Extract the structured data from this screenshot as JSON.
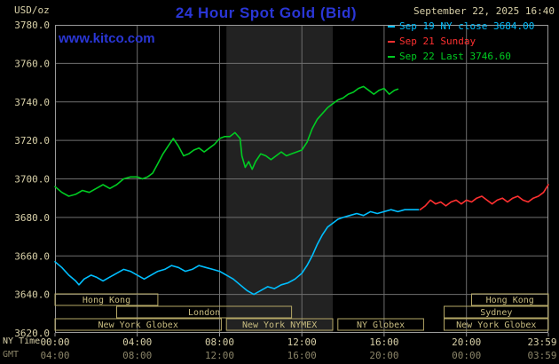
{
  "header": {
    "unit_label": "USD/oz",
    "title": "24 Hour Spot Gold (Bid)",
    "datetime": "September 22, 2025 16:40",
    "watermark": "www.kitco.com"
  },
  "legend": [
    {
      "label": "Sep 19 NY close 3684.00",
      "color": "#00bfff"
    },
    {
      "label": "Sep 21 Sunday",
      "color": "#ff3030"
    },
    {
      "label": "Sep 22 Last 3746.60",
      "color": "#00cc22"
    }
  ],
  "colors": {
    "background": "#000000",
    "band": "#222222",
    "grid": "#6f6f6f",
    "border": "#9a9a9a",
    "axis_text": "#d8d0a8",
    "gmt_text": "#8a8468",
    "session": "#b4a766",
    "session_text": "#c8bc80",
    "title_blue": "#2a36d6",
    "date_text": "#d8d0a8"
  },
  "axes": {
    "y": {
      "ticks": [
        3780,
        3760,
        3740,
        3720,
        3700,
        3680,
        3660,
        3640,
        3620
      ]
    },
    "x_ny": {
      "row_label": "NY Time",
      "ticks": [
        {
          "t": "00:00",
          "label": "00:00"
        },
        {
          "t": "04:00",
          "label": "04:00"
        },
        {
          "t": "08:00",
          "label": "08:00"
        },
        {
          "t": "12:00",
          "label": "12:00"
        },
        {
          "t": "16:00",
          "label": "16:00"
        },
        {
          "t": "20:00",
          "label": "20:00"
        },
        {
          "t": "23:59",
          "label": "23:59"
        }
      ]
    },
    "x_gmt": {
      "row_label": "GMT",
      "labels": [
        "04:00",
        "08:00",
        "12:00",
        "16:00",
        "20:00",
        "00:00",
        "03:59"
      ]
    }
  },
  "sessions": [
    {
      "label": "Hong Kong",
      "row": 0,
      "from": "00:00",
      "to": "05:00"
    },
    {
      "label": "Hong Kong",
      "row": 0,
      "from": "20:15",
      "to": "23:59"
    },
    {
      "label": "London",
      "row": 1,
      "from": "03:00",
      "to": "11:30"
    },
    {
      "label": "Sydney",
      "row": 1,
      "from": "18:55",
      "to": "23:59"
    },
    {
      "label": "New York Globex",
      "row": 2,
      "from": "00:00",
      "to": "08:05"
    },
    {
      "label": "New York NYMEX",
      "row": 2,
      "from": "08:20",
      "to": "13:30"
    },
    {
      "label": "NY Globex",
      "row": 2,
      "from": "13:45",
      "to": "17:55"
    },
    {
      "label": "New York Globex",
      "row": 2,
      "from": "18:55",
      "to": "23:59"
    }
  ],
  "chart_data": {
    "type": "line",
    "title": "24 Hour Spot Gold (Bid)",
    "ylabel": "USD/oz",
    "xlabel": "NY Time / GMT",
    "ylim": [
      3620,
      3780
    ],
    "grid": true,
    "legend_position": "top-right",
    "ny_close": 3684.0,
    "last": 3746.6,
    "shaded_region": {
      "from": "08:20",
      "to": "13:30"
    },
    "series": [
      {
        "id": "sep19",
        "name": "Sep 19 NY close 3684.00",
        "color": "#00bfff",
        "points": [
          [
            "00:00",
            3657
          ],
          [
            "00:20",
            3654
          ],
          [
            "00:40",
            3650
          ],
          [
            "01:00",
            3647
          ],
          [
            "01:10",
            3645
          ],
          [
            "01:25",
            3648
          ],
          [
            "01:45",
            3650
          ],
          [
            "02:00",
            3649
          ],
          [
            "02:20",
            3647
          ],
          [
            "02:40",
            3649
          ],
          [
            "03:00",
            3651
          ],
          [
            "03:20",
            3653
          ],
          [
            "03:40",
            3652
          ],
          [
            "04:00",
            3650
          ],
          [
            "04:20",
            3648
          ],
          [
            "04:40",
            3650
          ],
          [
            "05:00",
            3652
          ],
          [
            "05:20",
            3653
          ],
          [
            "05:40",
            3655
          ],
          [
            "06:00",
            3654
          ],
          [
            "06:20",
            3652
          ],
          [
            "06:40",
            3653
          ],
          [
            "07:00",
            3655
          ],
          [
            "07:20",
            3654
          ],
          [
            "07:40",
            3653
          ],
          [
            "08:00",
            3652
          ],
          [
            "08:20",
            3650
          ],
          [
            "08:40",
            3648
          ],
          [
            "09:00",
            3645
          ],
          [
            "09:20",
            3642
          ],
          [
            "09:40",
            3640
          ],
          [
            "10:00",
            3642
          ],
          [
            "10:20",
            3644
          ],
          [
            "10:40",
            3643
          ],
          [
            "11:00",
            3645
          ],
          [
            "11:20",
            3646
          ],
          [
            "11:40",
            3648
          ],
          [
            "12:00",
            3651
          ],
          [
            "12:15",
            3655
          ],
          [
            "12:30",
            3660
          ],
          [
            "12:45",
            3666
          ],
          [
            "13:00",
            3671
          ],
          [
            "13:15",
            3675
          ],
          [
            "13:30",
            3677
          ],
          [
            "13:45",
            3679
          ],
          [
            "14:00",
            3680
          ],
          [
            "14:20",
            3681
          ],
          [
            "14:40",
            3682
          ],
          [
            "15:00",
            3681
          ],
          [
            "15:20",
            3683
          ],
          [
            "15:40",
            3682
          ],
          [
            "16:00",
            3683
          ],
          [
            "16:20",
            3684
          ],
          [
            "16:40",
            3683
          ],
          [
            "17:00",
            3684
          ],
          [
            "17:20",
            3684
          ],
          [
            "17:40",
            3684
          ]
        ]
      },
      {
        "id": "sep21",
        "name": "Sep 21 Sunday",
        "color": "#ff3030",
        "points": [
          [
            "17:45",
            3684
          ],
          [
            "18:00",
            3686
          ],
          [
            "18:15",
            3689
          ],
          [
            "18:30",
            3687
          ],
          [
            "18:45",
            3688
          ],
          [
            "19:00",
            3686
          ],
          [
            "19:15",
            3688
          ],
          [
            "19:30",
            3689
          ],
          [
            "19:45",
            3687
          ],
          [
            "20:00",
            3689
          ],
          [
            "20:15",
            3688
          ],
          [
            "20:30",
            3690
          ],
          [
            "20:45",
            3691
          ],
          [
            "21:00",
            3689
          ],
          [
            "21:15",
            3687
          ],
          [
            "21:30",
            3689
          ],
          [
            "21:45",
            3690
          ],
          [
            "22:00",
            3688
          ],
          [
            "22:15",
            3690
          ],
          [
            "22:30",
            3691
          ],
          [
            "22:45",
            3689
          ],
          [
            "23:00",
            3688
          ],
          [
            "23:15",
            3690
          ],
          [
            "23:30",
            3691
          ],
          [
            "23:45",
            3693
          ],
          [
            "23:59",
            3697
          ]
        ]
      },
      {
        "id": "sep22",
        "name": "Sep 22 Last 3746.60",
        "color": "#00cc22",
        "points": [
          [
            "00:00",
            3696
          ],
          [
            "00:20",
            3693
          ],
          [
            "00:40",
            3691
          ],
          [
            "01:00",
            3692
          ],
          [
            "01:20",
            3694
          ],
          [
            "01:40",
            3693
          ],
          [
            "02:00",
            3695
          ],
          [
            "02:20",
            3697
          ],
          [
            "02:40",
            3695
          ],
          [
            "03:00",
            3697
          ],
          [
            "03:20",
            3700
          ],
          [
            "03:40",
            3701
          ],
          [
            "04:00",
            3701
          ],
          [
            "04:15",
            3700
          ],
          [
            "04:30",
            3701
          ],
          [
            "04:45",
            3703
          ],
          [
            "05:00",
            3708
          ],
          [
            "05:15",
            3713
          ],
          [
            "05:30",
            3717
          ],
          [
            "05:45",
            3721
          ],
          [
            "06:00",
            3717
          ],
          [
            "06:15",
            3712
          ],
          [
            "06:30",
            3713
          ],
          [
            "06:45",
            3715
          ],
          [
            "07:00",
            3716
          ],
          [
            "07:15",
            3714
          ],
          [
            "07:30",
            3716
          ],
          [
            "07:45",
            3718
          ],
          [
            "08:00",
            3721
          ],
          [
            "08:15",
            3722
          ],
          [
            "08:30",
            3722
          ],
          [
            "08:45",
            3724
          ],
          [
            "09:00",
            3721
          ],
          [
            "09:05",
            3712
          ],
          [
            "09:15",
            3706
          ],
          [
            "09:25",
            3709
          ],
          [
            "09:35",
            3705
          ],
          [
            "09:45",
            3709
          ],
          [
            "10:00",
            3713
          ],
          [
            "10:15",
            3712
          ],
          [
            "10:30",
            3710
          ],
          [
            "10:45",
            3712
          ],
          [
            "11:00",
            3714
          ],
          [
            "11:15",
            3712
          ],
          [
            "11:30",
            3713
          ],
          [
            "11:45",
            3714
          ],
          [
            "12:00",
            3715
          ],
          [
            "12:15",
            3719
          ],
          [
            "12:30",
            3726
          ],
          [
            "12:45",
            3731
          ],
          [
            "13:00",
            3734
          ],
          [
            "13:15",
            3737
          ],
          [
            "13:30",
            3739
          ],
          [
            "13:45",
            3741
          ],
          [
            "14:00",
            3742
          ],
          [
            "14:15",
            3744
          ],
          [
            "14:30",
            3745
          ],
          [
            "14:45",
            3747
          ],
          [
            "15:00",
            3748
          ],
          [
            "15:15",
            3746
          ],
          [
            "15:30",
            3744
          ],
          [
            "15:45",
            3746
          ],
          [
            "16:00",
            3747
          ],
          [
            "16:15",
            3744
          ],
          [
            "16:30",
            3746
          ],
          [
            "16:40",
            3746.6
          ]
        ]
      }
    ]
  }
}
